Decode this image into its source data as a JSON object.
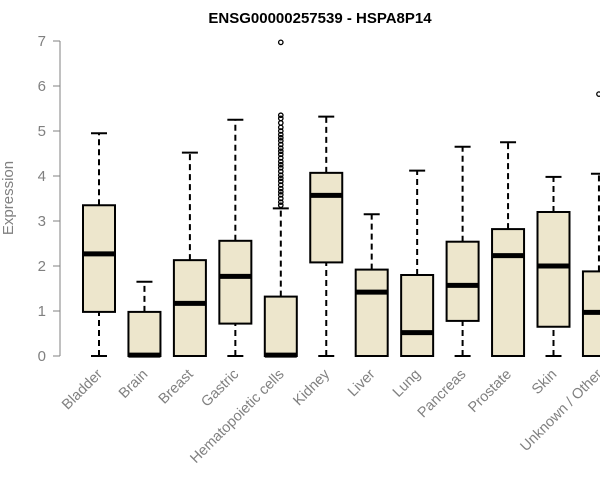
{
  "chart_data": {
    "type": "box",
    "title": "ENSG00000257539 - HSPA8P14",
    "xlabel": "",
    "ylabel": "Expression",
    "ylim": [
      0,
      7
    ],
    "yticks": [
      0,
      1,
      2,
      3,
      4,
      5,
      6,
      7
    ],
    "grid": false,
    "colors": {
      "box_fill": "#ede6cc",
      "box_stroke": "#000000",
      "axis": "#808080"
    },
    "categories": [
      "Bladder",
      "Brain",
      "Breast",
      "Gastric",
      "Hematopoietic cells",
      "Kidney",
      "Liver",
      "Lung",
      "Pancreas",
      "Prostate",
      "Skin",
      "Unknown / Other"
    ],
    "boxes": [
      {
        "category": "Bladder",
        "whisker_low": 0,
        "q1": 0.98,
        "median": 2.27,
        "q3": 3.35,
        "whisker_high": 4.95,
        "outliers": []
      },
      {
        "category": "Brain",
        "whisker_low": 0,
        "q1": 0,
        "median": 0.02,
        "q3": 0.98,
        "whisker_high": 1.65,
        "outliers": []
      },
      {
        "category": "Breast",
        "whisker_low": 0,
        "q1": 0,
        "median": 1.17,
        "q3": 2.13,
        "whisker_high": 4.52,
        "outliers": []
      },
      {
        "category": "Gastric",
        "whisker_low": 0,
        "q1": 0.72,
        "median": 1.77,
        "q3": 2.56,
        "whisker_high": 5.25,
        "outliers": []
      },
      {
        "category": "Hematopoietic cells",
        "whisker_low": 0,
        "q1": 0,
        "median": 0.02,
        "q3": 1.32,
        "whisker_high": 3.28,
        "outliers": [
          3.35,
          3.42,
          3.5,
          3.58,
          3.65,
          3.72,
          3.8,
          3.88,
          3.95,
          4.02,
          4.1,
          4.18,
          4.25,
          4.32,
          4.4,
          4.48,
          4.55,
          4.62,
          4.7,
          4.78,
          4.85,
          4.92,
          5.0,
          5.08,
          5.18,
          5.28,
          5.35,
          6.97
        ]
      },
      {
        "category": "Kidney",
        "whisker_low": 0,
        "q1": 2.08,
        "median": 3.57,
        "q3": 4.07,
        "whisker_high": 5.32,
        "outliers": []
      },
      {
        "category": "Liver",
        "whisker_low": 0,
        "q1": 0,
        "median": 1.42,
        "q3": 1.92,
        "whisker_high": 3.15,
        "outliers": []
      },
      {
        "category": "Lung",
        "whisker_low": 0,
        "q1": 0,
        "median": 0.52,
        "q3": 1.8,
        "whisker_high": 4.12,
        "outliers": []
      },
      {
        "category": "Pancreas",
        "whisker_low": 0,
        "q1": 0.78,
        "median": 1.57,
        "q3": 2.54,
        "whisker_high": 4.65,
        "outliers": []
      },
      {
        "category": "Prostate",
        "whisker_low": 0,
        "q1": 0,
        "median": 2.23,
        "q3": 2.82,
        "whisker_high": 4.75,
        "outliers": []
      },
      {
        "category": "Skin",
        "whisker_low": 0,
        "q1": 0.65,
        "median": 2.0,
        "q3": 3.2,
        "whisker_high": 3.98,
        "outliers": []
      },
      {
        "category": "Unknown / Other",
        "whisker_low": 0,
        "q1": 0,
        "median": 0.97,
        "q3": 1.88,
        "whisker_high": 4.05,
        "outliers": [
          5.82
        ]
      }
    ]
  }
}
